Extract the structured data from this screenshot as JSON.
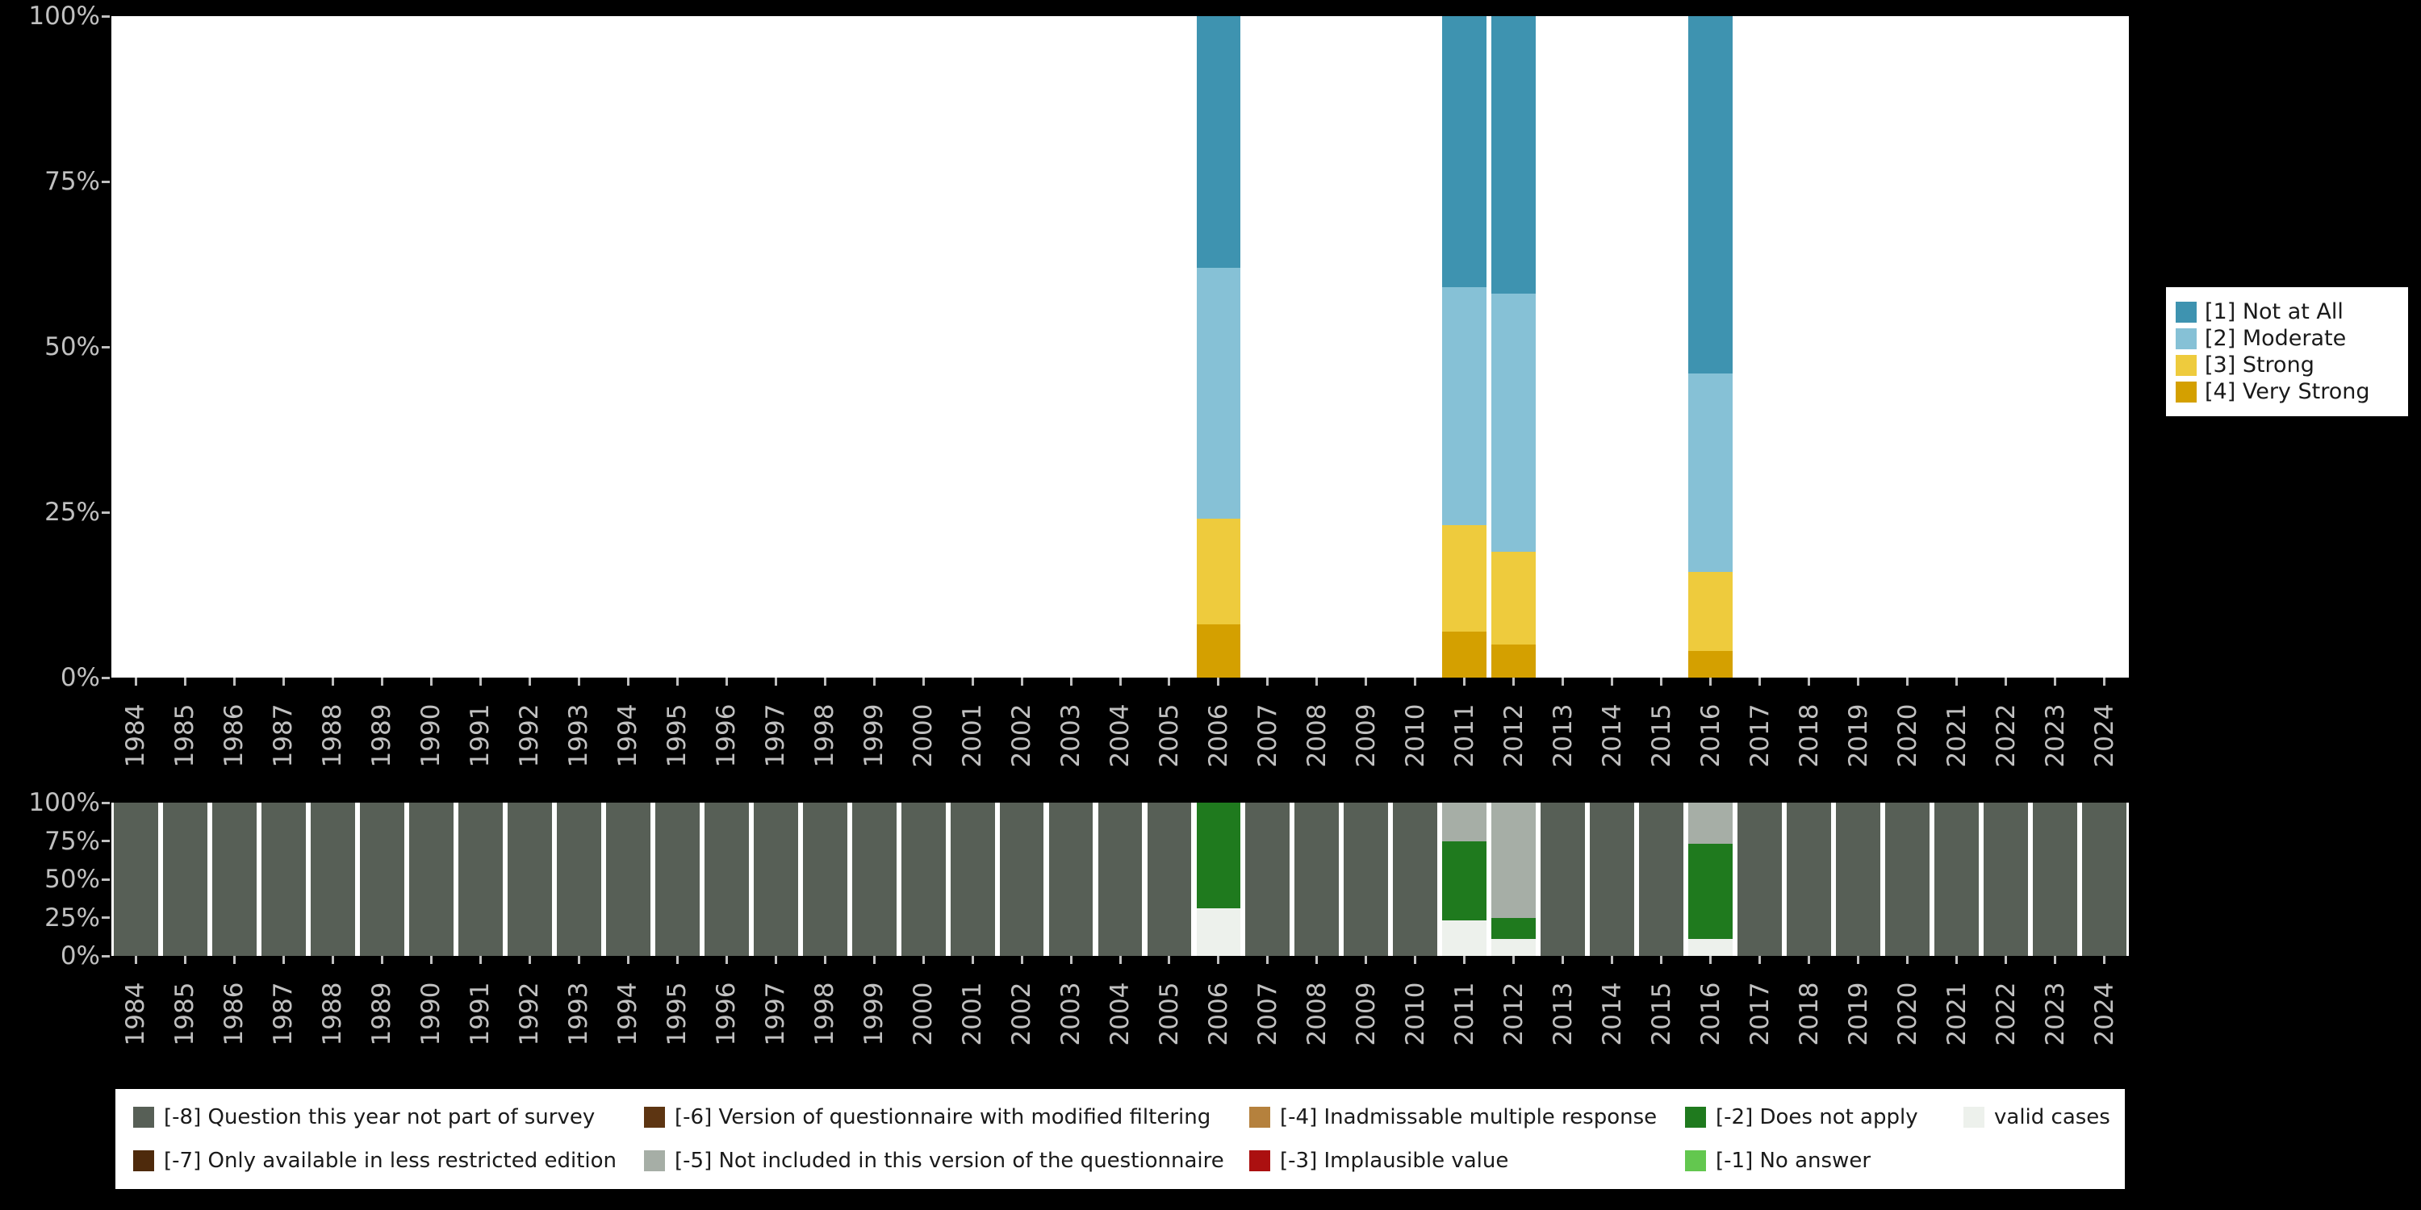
{
  "background": "#000000",
  "panel_color": "#ffffff",
  "axis_text_color": "#c0c0c0",
  "axis": {
    "y_tick_labels": [
      "0%",
      "25%",
      "50%",
      "75%",
      "100%"
    ],
    "y_tick_percents": [
      0,
      25,
      50,
      75,
      100
    ]
  },
  "chart_data": [
    {
      "type": "bar",
      "stacked": true,
      "unit": "percent",
      "title": "",
      "xlabel": "",
      "ylabel": "",
      "ylim": [
        0,
        100
      ],
      "grid": false,
      "legend_position": "right",
      "categories": [
        "1984",
        "1985",
        "1986",
        "1987",
        "1988",
        "1989",
        "1990",
        "1991",
        "1992",
        "1993",
        "1994",
        "1995",
        "1996",
        "1997",
        "1998",
        "1999",
        "2000",
        "2001",
        "2002",
        "2003",
        "2004",
        "2005",
        "2006",
        "2007",
        "2008",
        "2009",
        "2010",
        "2011",
        "2012",
        "2013",
        "2014",
        "2015",
        "2016",
        "2017",
        "2018",
        "2019",
        "2020",
        "2021",
        "2022",
        "2023",
        "2024"
      ],
      "series": [
        {
          "name": "[4] Very Strong",
          "color": "#d4a000",
          "default": 0,
          "values_by_year": {
            "2006": 8,
            "2011": 7,
            "2012": 5,
            "2016": 4
          }
        },
        {
          "name": "[3] Strong",
          "color": "#eecb3d",
          "default": 0,
          "values_by_year": {
            "2006": 16,
            "2011": 16,
            "2012": 14,
            "2016": 12
          }
        },
        {
          "name": "[2] Moderate",
          "color": "#86c1d6",
          "default": 0,
          "values_by_year": {
            "2006": 38,
            "2011": 36,
            "2012": 39,
            "2016": 30
          }
        },
        {
          "name": "[1] Not at All",
          "color": "#3e93b0",
          "default": 0,
          "values_by_year": {
            "2006": 38,
            "2011": 41,
            "2012": 42,
            "2016": 54
          }
        }
      ]
    },
    {
      "type": "bar",
      "stacked": true,
      "unit": "percent",
      "title": "",
      "xlabel": "",
      "ylabel": "",
      "ylim": [
        0,
        100
      ],
      "grid": false,
      "legend_position": "bottom",
      "categories": [
        "1984",
        "1985",
        "1986",
        "1987",
        "1988",
        "1989",
        "1990",
        "1991",
        "1992",
        "1993",
        "1994",
        "1995",
        "1996",
        "1997",
        "1998",
        "1999",
        "2000",
        "2001",
        "2002",
        "2003",
        "2004",
        "2005",
        "2006",
        "2007",
        "2008",
        "2009",
        "2010",
        "2011",
        "2012",
        "2013",
        "2014",
        "2015",
        "2016",
        "2017",
        "2018",
        "2019",
        "2020",
        "2021",
        "2022",
        "2023",
        "2024"
      ],
      "series": [
        {
          "name": "valid cases",
          "color": "#edf1ec",
          "default": 0,
          "values_by_year": {
            "2006": 31,
            "2011": 23,
            "2012": 11,
            "2016": 11
          }
        },
        {
          "name": "[-2] Does not apply",
          "color": "#1f7a1e",
          "default": 0,
          "values_by_year": {
            "2006": 69,
            "2011": 52,
            "2012": 14,
            "2016": 62
          }
        },
        {
          "name": "[-5] Not included in this version of the questionnaire",
          "color": "#a6aea6",
          "default": 0,
          "values_by_year": {
            "2011": 25,
            "2012": 75,
            "2016": 27
          }
        },
        {
          "name": "[-8] Question this year not part of survey",
          "color": "#575f56",
          "default": 100,
          "values_by_year": {
            "2006": 0,
            "2011": 0,
            "2012": 0,
            "2016": 0
          }
        }
      ]
    }
  ],
  "missing_legend": [
    {
      "label": "[-8] Question this year not part of survey",
      "color": "#575f56"
    },
    {
      "label": "[-7] Only available in less restricted edition",
      "color": "#4e2a0c"
    },
    {
      "label": "[-6] Version of questionnaire with modified filtering",
      "color": "#5d3512"
    },
    {
      "label": "[-5] Not included in this version of the questionnaire",
      "color": "#a6aea6"
    },
    {
      "label": "[-4] Inadmissable multiple response",
      "color": "#b5813d"
    },
    {
      "label": "[-3] Implausible value",
      "color": "#ab1010"
    },
    {
      "label": "[-2] Does not apply",
      "color": "#1f7a1e"
    },
    {
      "label": "[-1] No answer",
      "color": "#63c74f"
    },
    {
      "label": "valid cases",
      "color": "#edf1ec"
    }
  ]
}
